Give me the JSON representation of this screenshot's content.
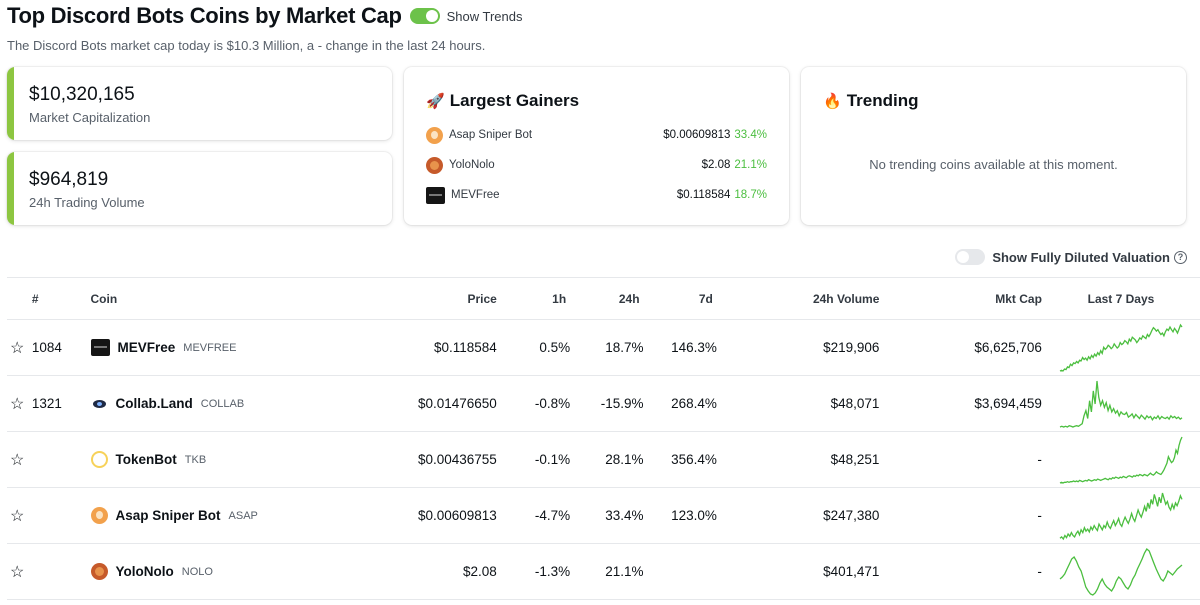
{
  "header": {
    "title": "Top Discord Bots Coins by Market Cap",
    "trends_toggle_label": "Show Trends",
    "subtitle": "The Discord Bots market cap today is $10.3 Million, a - change in the last 24 hours."
  },
  "stats": {
    "market_cap_value": "$10,320,165",
    "market_cap_label": "Market Capitalization",
    "volume_value": "$964,819",
    "volume_label": "24h Trading Volume"
  },
  "gainers": {
    "title": "Largest Gainers",
    "title_emoji": "🚀",
    "items": [
      {
        "name": "Asap Sniper Bot",
        "price": "$0.00609813",
        "change": "33.4%",
        "icon": "asap-sniper-bot-logo"
      },
      {
        "name": "YoloNolo",
        "price": "$2.08",
        "change": "21.1%",
        "icon": "yolonolo-logo"
      },
      {
        "name": "MEVFree",
        "price": "$0.118584",
        "change": "18.7%",
        "icon": "mevfree-logo"
      }
    ]
  },
  "trending": {
    "title": "Trending",
    "title_emoji": "🔥",
    "empty_text": "No trending coins available at this moment."
  },
  "fdv_toggle": {
    "label": "Show Fully Diluted Valuation",
    "help_glyph": "?"
  },
  "table": {
    "headers": {
      "rank": "#",
      "coin": "Coin",
      "price": "Price",
      "h1": "1h",
      "h24": "24h",
      "d7": "7d",
      "volume": "24h Volume",
      "mcap": "Mkt Cap",
      "spark": "Last 7 Days"
    },
    "rows": [
      {
        "rank": "1084",
        "name": "MEVFree",
        "symbol": "MEVFREE",
        "price": "$0.118584",
        "h1": "0.5%",
        "h24": "18.7%",
        "d7": "146.3%",
        "volume": "$219,906",
        "mcap": "$6,625,706",
        "icon": "mevfree-logo",
        "spark": [
          10,
          11,
          10,
          13,
          12,
          16,
          15,
          20,
          18,
          22,
          21,
          24,
          22,
          26,
          25,
          30,
          27,
          29,
          26,
          31,
          28,
          33,
          30,
          35,
          32,
          37,
          34,
          40,
          36,
          45,
          42,
          44,
          48,
          46,
          43,
          45,
          50,
          47,
          44,
          46,
          52,
          49,
          51,
          55,
          53,
          50,
          57,
          54,
          60,
          58,
          56,
          52,
          55,
          59,
          57,
          62,
          60,
          58,
          64,
          61,
          65,
          70,
          74,
          72,
          69,
          71,
          67,
          64,
          66,
          62,
          68,
          72,
          70,
          75,
          71,
          68,
          73,
          70,
          66,
          72,
          78,
          75
        ]
      },
      {
        "rank": "1321",
        "name": "Collab.Land",
        "symbol": "COLLAB",
        "price": "$0.01476650",
        "h1": "-0.8%",
        "h24": "-15.9%",
        "d7": "268.4%",
        "volume": "$48,071",
        "mcap": "$3,694,459",
        "icon": "collab-land-logo",
        "spark": [
          5,
          6,
          5,
          6,
          5,
          7,
          6,
          5,
          6,
          7,
          6,
          8,
          10,
          22,
          30,
          18,
          45,
          28,
          60,
          40,
          75,
          50,
          38,
          45,
          35,
          42,
          30,
          38,
          28,
          33,
          26,
          30,
          22,
          28,
          25,
          24,
          27,
          20,
          22,
          25,
          19,
          24,
          21,
          18,
          23,
          20,
          17,
          22,
          19,
          21,
          16,
          20,
          18,
          22,
          17,
          21,
          19,
          18,
          20,
          17,
          22,
          19,
          21,
          18,
          20,
          17,
          19
        ]
      },
      {
        "rank": "",
        "name": "TokenBot",
        "symbol": "TKB",
        "price": "$0.00436755",
        "h1": "-0.1%",
        "h24": "28.1%",
        "d7": "356.4%",
        "volume": "$48,251",
        "mcap": "-",
        "icon": "tokenbot-logo",
        "spark": [
          5,
          6,
          5,
          6,
          6,
          7,
          6,
          7,
          7,
          8,
          7,
          8,
          7,
          9,
          8,
          7,
          8,
          9,
          8,
          10,
          9,
          8,
          9,
          10,
          9,
          11,
          10,
          9,
          10,
          11,
          12,
          11,
          10,
          12,
          11,
          13,
          12,
          14,
          13,
          12,
          14,
          13,
          15,
          14,
          13,
          15,
          16,
          15,
          14,
          16,
          15,
          17,
          16,
          18,
          17,
          16,
          18,
          17,
          16,
          18,
          20,
          18,
          17,
          19,
          22,
          20,
          19,
          18,
          21,
          25,
          30,
          35,
          45,
          40,
          36,
          38,
          44,
          55,
          50,
          62,
          70,
          75
        ]
      },
      {
        "rank": "",
        "name": "Asap Sniper Bot",
        "symbol": "ASAP",
        "price": "$0.00609813",
        "h1": "-4.7%",
        "h24": "33.4%",
        "d7": "123.0%",
        "volume": "$247,380",
        "mcap": "-",
        "icon": "asap-sniper-bot-logo",
        "spark": [
          10,
          12,
          9,
          14,
          11,
          16,
          13,
          18,
          14,
          12,
          17,
          20,
          15,
          22,
          18,
          25,
          20,
          23,
          19,
          26,
          22,
          28,
          24,
          21,
          30,
          26,
          22,
          28,
          25,
          33,
          27,
          24,
          30,
          35,
          28,
          32,
          38,
          30,
          27,
          34,
          40,
          35,
          31,
          37,
          45,
          38,
          34,
          42,
          50,
          44,
          40,
          47,
          55,
          48,
          60,
          52,
          65,
          58,
          72,
          64,
          55,
          68,
          60,
          74,
          66,
          58,
          62,
          54,
          50,
          58,
          52,
          60,
          56,
          62,
          70,
          65
        ]
      },
      {
        "rank": "",
        "name": "YoloNolo",
        "symbol": "NOLO",
        "price": "$2.08",
        "h1": "-1.3%",
        "h24": "21.1%",
        "d7": "",
        "volume": "$401,471",
        "mcap": "-",
        "icon": "yolonolo-logo",
        "spark": [
          30,
          32,
          35,
          40,
          45,
          50,
          52,
          48,
          42,
          38,
          30,
          22,
          18,
          15,
          14,
          16,
          20,
          26,
          30,
          25,
          22,
          20,
          18,
          22,
          28,
          32,
          30,
          26,
          22,
          20,
          24,
          30,
          34,
          40,
          45,
          50,
          56,
          60,
          58,
          52,
          46,
          40,
          35,
          30,
          28,
          32,
          38,
          36,
          34,
          37,
          40,
          42,
          44
        ]
      }
    ]
  },
  "colors": {
    "positive": "#4bbe3f",
    "negative": "#e15241",
    "accent": "#8dc641"
  }
}
